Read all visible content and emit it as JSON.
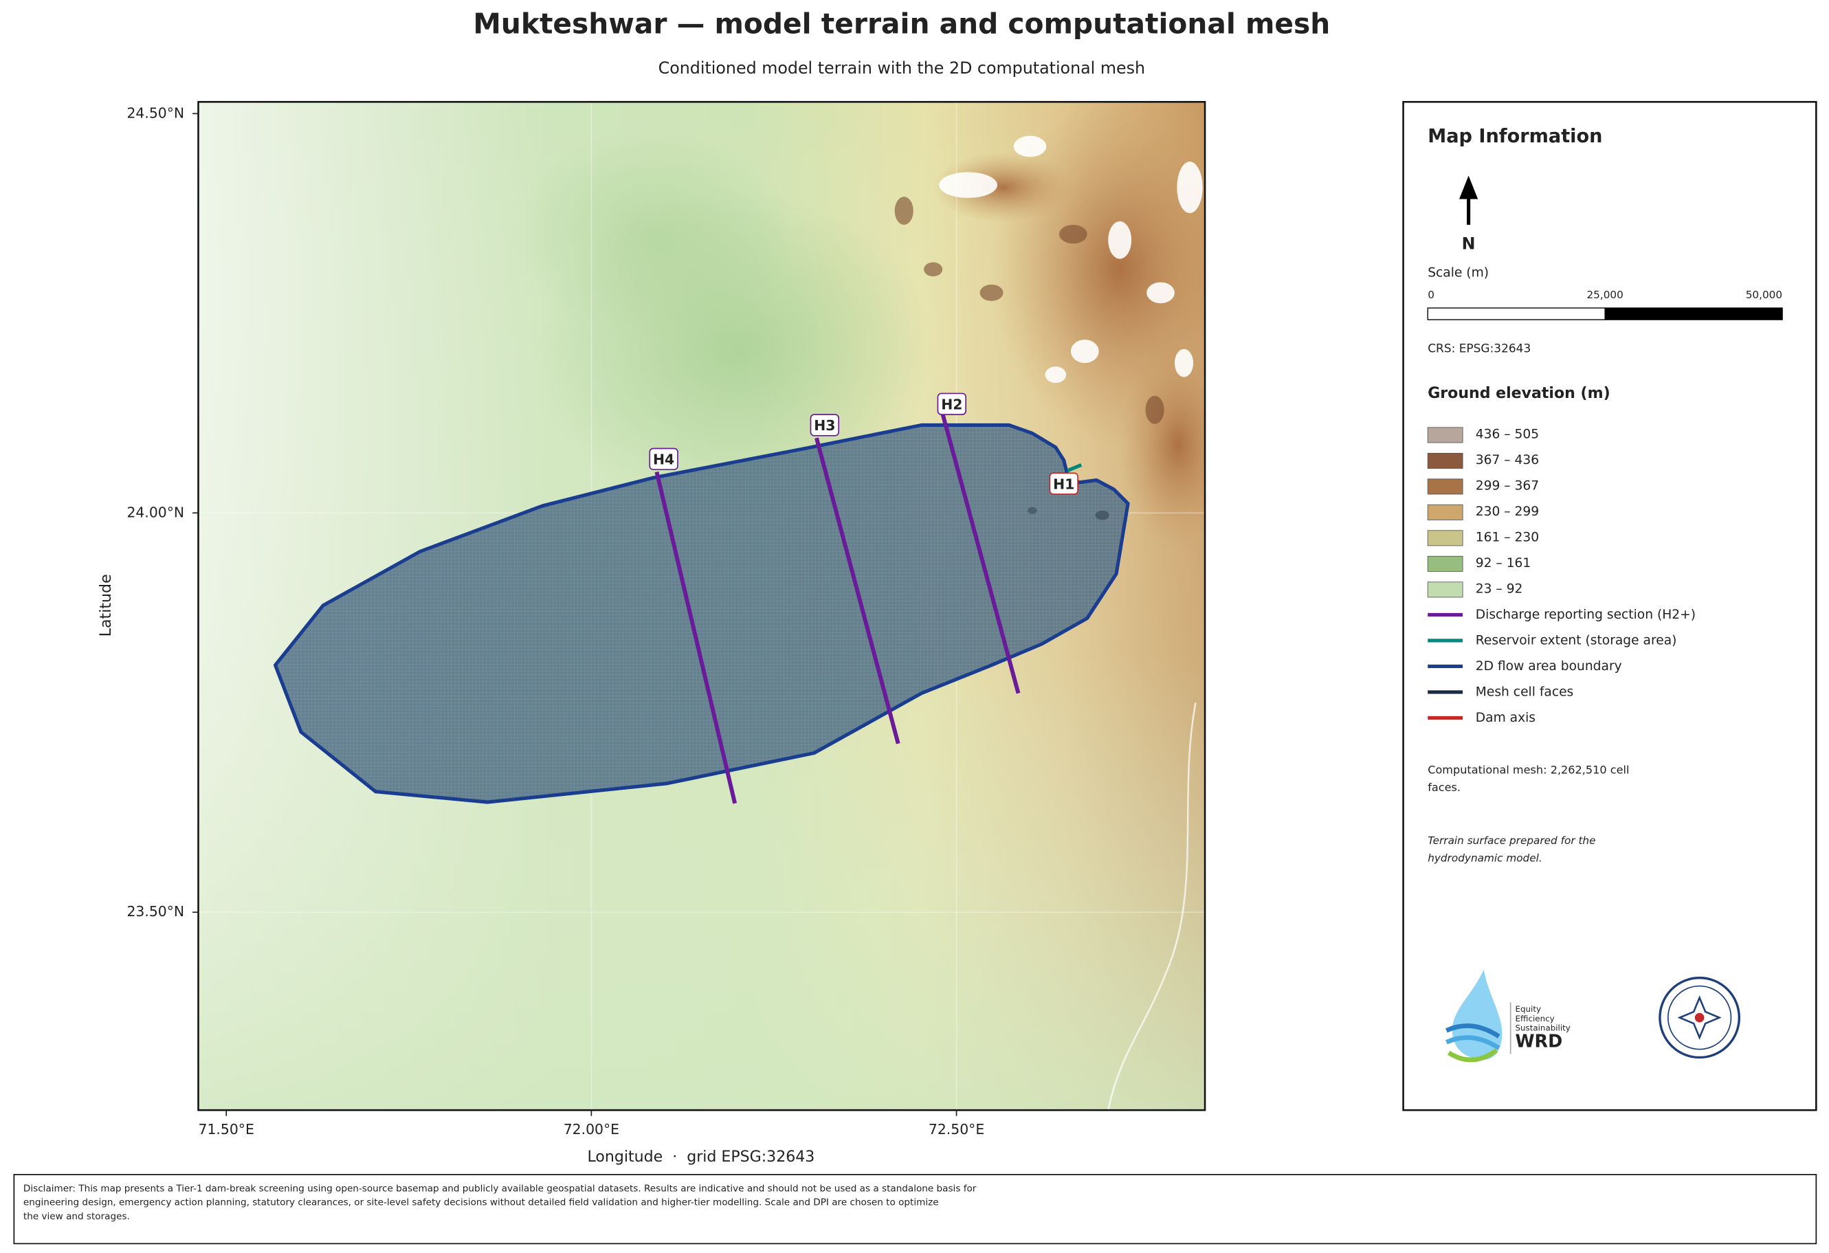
{
  "title": "Mukteshwar — model terrain and computational mesh",
  "subtitle": "Conditioned model terrain with the 2D computational mesh",
  "map": {
    "x_axis": {
      "label": "Longitude  ·  grid EPSG:32643",
      "lim": [
        71.4617,
        72.8403
      ],
      "ticks": [
        {
          "value": 71.5,
          "label": "71.50°E"
        },
        {
          "value": 72.0,
          "label": "72.00°E"
        },
        {
          "value": 72.5,
          "label": "72.50°E"
        }
      ]
    },
    "y_axis": {
      "label": "Latitude",
      "lim": [
        23.2522,
        24.5147
      ],
      "ticks": [
        {
          "value": 23.5,
          "label": "23.50°N"
        },
        {
          "value": 24.0,
          "label": "24.00°N"
        },
        {
          "value": 24.5,
          "label": "24.50°N"
        }
      ]
    },
    "section_labels": [
      "H4",
      "H3",
      "H2"
    ],
    "dam_label": "H1"
  },
  "panel": {
    "title": "Map Information",
    "north": "N",
    "scale_title": "Scale (m)",
    "scale_ticks": [
      {
        "value": 0,
        "label": "0"
      },
      {
        "value": 25000,
        "label": "25,000"
      },
      {
        "value": 50000,
        "label": "50,000"
      }
    ],
    "crs": "CRS: EPSG:32643",
    "legend_title": "Ground elevation (m)",
    "legend": [
      {
        "label": "436 – 505",
        "color": "#b6a69c",
        "kind": "patch"
      },
      {
        "label": "367 – 436",
        "color": "#8b5a3e",
        "kind": "patch"
      },
      {
        "label": "299 – 367",
        "color": "#a87446",
        "kind": "patch"
      },
      {
        "label": "230 – 299",
        "color": "#cfa66b",
        "kind": "patch"
      },
      {
        "label": "161 – 230",
        "color": "#c9c48a",
        "kind": "patch"
      },
      {
        "label": "92 – 161",
        "color": "#97bd7f",
        "kind": "patch"
      },
      {
        "label": "23 – 92",
        "color": "#c2dcb0",
        "kind": "patch"
      },
      {
        "label": "Discharge reporting section (H2+)",
        "color": "#6a1b9a",
        "kind": "line"
      },
      {
        "label": "Reservoir extent (storage area)",
        "color": "#00897b",
        "kind": "line"
      },
      {
        "label": "2D flow area boundary",
        "color": "#1a3d8f",
        "kind": "line"
      },
      {
        "label": "Mesh cell faces",
        "color": "#1b2a44",
        "kind": "line"
      },
      {
        "label": "Dam axis",
        "color": "#c62828",
        "kind": "line"
      }
    ],
    "mesh_note": [
      "Computational mesh: 2,262,510 cell",
      "faces."
    ],
    "terrain_note": [
      "Terrain surface prepared for the",
      "hydrodynamic model."
    ]
  },
  "logo": {
    "lines": [
      "Equity",
      "Efficiency",
      "Sustainability"
    ],
    "name": "WRD"
  },
  "disclaimer": [
    "Disclaimer: This map presents a Tier-1 dam-break screening using open-source basemap and publicly available geospatial datasets. Results are indicative and should not be used as a standalone basis for",
    "engineering design, emergency action planning, statutory clearances, or site-level safety decisions without detailed field validation and higher-tier modelling. Scale and DPI are chosen to optimize",
    "the view and storages."
  ]
}
